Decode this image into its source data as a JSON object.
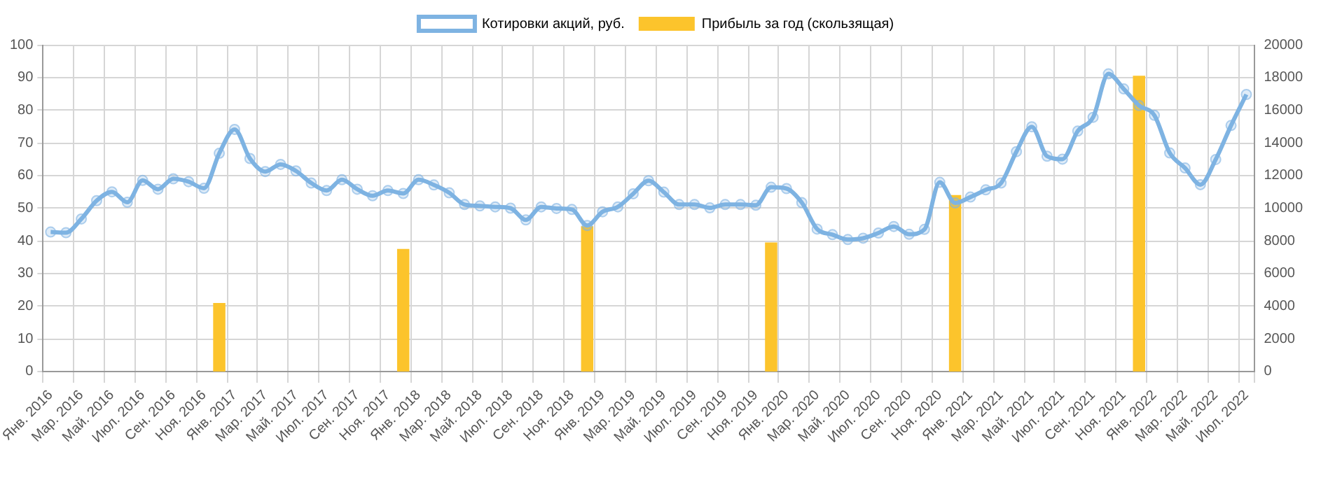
{
  "chart_data": {
    "type": "line",
    "categories": [
      "Янв. 2016",
      null,
      "Мар. 2016",
      null,
      "Май. 2016",
      null,
      "Июл. 2016",
      null,
      "Сен. 2016",
      null,
      "Ноя. 2016",
      null,
      "Янв. 2017",
      null,
      "Мар. 2017",
      null,
      "Май. 2017",
      null,
      "Июл. 2017",
      null,
      "Сен. 2017",
      null,
      "Ноя. 2017",
      null,
      "Янв. 2018",
      null,
      "Мар. 2018",
      null,
      "Май. 2018",
      null,
      "Июл. 2018",
      null,
      "Сен. 2018",
      null,
      "Ноя. 2018",
      null,
      "Янв. 2019",
      null,
      "Мар. 2019",
      null,
      "Май. 2019",
      null,
      "Июл. 2019",
      null,
      "Сен. 2019",
      null,
      "Ноя. 2019",
      null,
      "Янв. 2020",
      null,
      "Мар. 2020",
      null,
      "Май. 2020",
      null,
      "Июл. 2020",
      null,
      "Сен. 2020",
      null,
      "Ноя. 2020",
      null,
      "Янв. 2021",
      null,
      "Мар. 2021",
      null,
      "Май. 2021",
      null,
      "Июл. 2021",
      null,
      "Сен. 2021",
      null,
      "Ноя. 2021",
      null,
      "Янв. 2022",
      null,
      "Мар. 2022",
      null,
      "Май. 2022",
      null,
      "Июл. 2022"
    ],
    "series": [
      {
        "name": "Котировки акций, руб.",
        "color": "#7eb3e2",
        "values": [
          42.7,
          42.5,
          46.7,
          52.3,
          55,
          51.8,
          58.5,
          55.8,
          59,
          58.1,
          56.1,
          66.8,
          74.1,
          65.2,
          61.2,
          63.4,
          61.4,
          57.7,
          55.4,
          58.7,
          55.8,
          53.8,
          55.4,
          54.5,
          58.7,
          57.1,
          54.7,
          51.1,
          50.7,
          50.4,
          50,
          46.4,
          50.4,
          49.9,
          49.6,
          44.7,
          48.9,
          50.4,
          54.4,
          58.4,
          54.9,
          51.1,
          51.1,
          50.1,
          51.1,
          51.1,
          50.9,
          56.4,
          56,
          51.7,
          43.6,
          41.9,
          40.4,
          40.8,
          42.4,
          44.4,
          42,
          43.5,
          57.9,
          51.6,
          53.4,
          55.6,
          57.7,
          67.3,
          74.9,
          65.9,
          65,
          73.6,
          77.8,
          91.1,
          86.5,
          81.4,
          78.4,
          66.9,
          62.3,
          57.2,
          64.9,
          75.3,
          84.8
        ]
      },
      {
        "name": "Прибыль за год (скользящая)",
        "type": "bar",
        "axis": "y2",
        "color": "#fcc42c",
        "values": [
          null,
          null,
          null,
          null,
          null,
          null,
          null,
          null,
          null,
          null,
          null,
          4200,
          null,
          null,
          null,
          null,
          null,
          null,
          null,
          null,
          null,
          null,
          null,
          7500,
          null,
          null,
          null,
          null,
          null,
          null,
          null,
          null,
          null,
          null,
          null,
          8900,
          null,
          null,
          null,
          null,
          null,
          null,
          null,
          null,
          null,
          null,
          null,
          7900,
          null,
          null,
          null,
          null,
          null,
          null,
          null,
          null,
          null,
          null,
          null,
          10800,
          null,
          null,
          null,
          null,
          null,
          null,
          null,
          null,
          null,
          null,
          null,
          18100,
          null,
          null,
          null,
          null,
          null,
          null,
          null
        ]
      }
    ],
    "ylim": [
      0,
      100
    ],
    "yticks": [
      0,
      10,
      20,
      30,
      40,
      50,
      60,
      70,
      80,
      90,
      100
    ],
    "y2lim": [
      0,
      20000
    ],
    "y2ticks": [
      0,
      2000,
      4000,
      6000,
      8000,
      10000,
      12000,
      14000,
      16000,
      18000,
      20000
    ],
    "grid": true,
    "legend": "top",
    "marker": "circle"
  }
}
